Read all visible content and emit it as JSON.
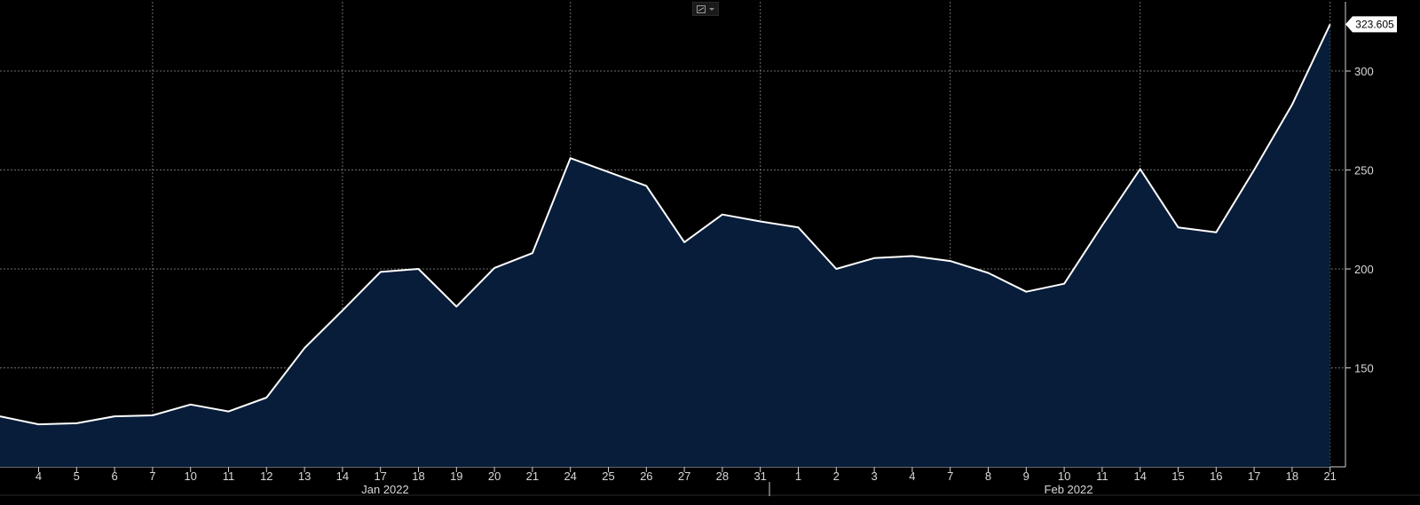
{
  "toolbar": {
    "chart_type_icon": "line-chart-icon",
    "dropdown_icon": "caret-down-icon"
  },
  "colors": {
    "background": "#000000",
    "area_fill": "#081d3a",
    "line": "#ffffff",
    "grid": "#8a8a8a",
    "axis": "#d0d0d0",
    "last_label_bg": "#ffffff"
  },
  "chart_data": {
    "type": "area",
    "title": "",
    "xlabel": "",
    "ylabel": "",
    "grid": true,
    "y_axis_position": "right",
    "ylim": [
      100,
      335
    ],
    "yticks": [
      150,
      200,
      250,
      300
    ],
    "x": [
      "4",
      "5",
      "6",
      "7",
      "10",
      "11",
      "12",
      "13",
      "14",
      "17",
      "18",
      "19",
      "20",
      "21",
      "24",
      "25",
      "26",
      "27",
      "28",
      "31",
      "1",
      "2",
      "3",
      "4",
      "7",
      "8",
      "9",
      "10",
      "11",
      "14",
      "15",
      "16",
      "17",
      "18",
      "21"
    ],
    "dates": [
      "2022-01-04",
      "2022-01-05",
      "2022-01-06",
      "2022-01-07",
      "2022-01-10",
      "2022-01-11",
      "2022-01-12",
      "2022-01-13",
      "2022-01-14",
      "2022-01-17",
      "2022-01-18",
      "2022-01-19",
      "2022-01-20",
      "2022-01-21",
      "2022-01-24",
      "2022-01-25",
      "2022-01-26",
      "2022-01-27",
      "2022-01-28",
      "2022-01-31",
      "2022-02-01",
      "2022-02-02",
      "2022-02-03",
      "2022-02-04",
      "2022-02-07",
      "2022-02-08",
      "2022-02-09",
      "2022-02-10",
      "2022-02-11",
      "2022-02-14",
      "2022-02-15",
      "2022-02-16",
      "2022-02-17",
      "2022-02-18",
      "2022-02-21"
    ],
    "values": [
      121.5,
      122,
      125.5,
      126,
      131.5,
      128,
      135,
      160,
      179,
      198.5,
      200,
      181,
      200.5,
      208,
      256,
      249,
      242,
      213.5,
      227.5,
      224,
      221,
      200,
      205.5,
      206.5,
      204,
      198,
      188.5,
      192.5,
      222,
      250.5,
      221,
      218.5,
      250,
      283,
      323.605
    ],
    "leading_value": 125.5,
    "last_value_label": "323.605",
    "month_labels": [
      "Jan 2022",
      "Feb 2022"
    ]
  }
}
